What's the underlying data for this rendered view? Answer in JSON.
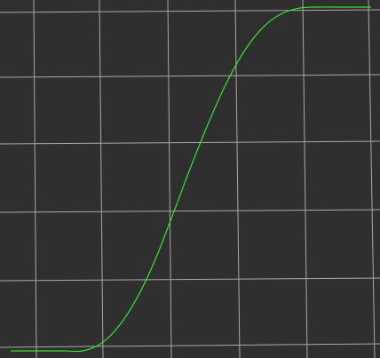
{
  "chart_data": {
    "type": "line",
    "title": "",
    "xlabel": "",
    "ylabel": "",
    "grid": true,
    "colors": {
      "background": "#2f2f2f",
      "grid": "#a9a9a9",
      "curve": "#33e52e"
    },
    "series": [
      {
        "x": [
          0.0,
          0.05,
          0.1,
          0.15,
          0.2,
          0.25,
          0.3,
          0.35,
          0.4,
          0.45,
          0.5,
          0.55,
          0.6,
          0.65,
          0.7,
          0.75,
          0.8,
          0.85,
          0.9,
          0.95,
          1.0
        ],
        "y": [
          0.0,
          0.0,
          0.0,
          0.0,
          0.0,
          0.021,
          0.072,
          0.153,
          0.263,
          0.397,
          0.536,
          0.666,
          0.782,
          0.875,
          0.941,
          0.98,
          0.997,
          1.0,
          1.0,
          1.0,
          1.0
        ]
      }
    ]
  }
}
